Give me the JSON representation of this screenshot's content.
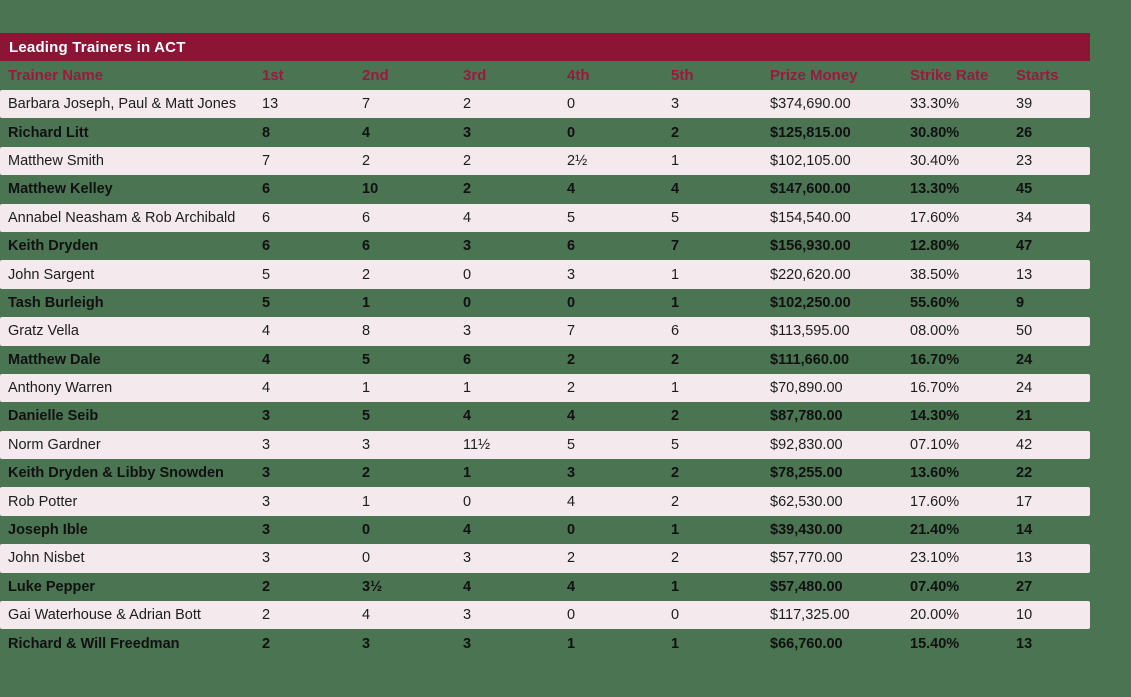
{
  "colors": {
    "page_background": "#4a7452",
    "title_bar": "#8c1535",
    "header_text": "#9a1a3f",
    "row_light": "#f4e9ed",
    "title_text": "#ffffff",
    "row_text": "#1d1d1d"
  },
  "table": {
    "title": "Leading Trainers in ACT"
  },
  "chart_data": {
    "type": "table",
    "title": "Leading Trainers in ACT",
    "columns": [
      "Trainer Name",
      "1st",
      "2nd",
      "3rd",
      "4th",
      "5th",
      "Prize Money",
      "Strike Rate",
      "Starts"
    ],
    "rows": [
      [
        "Barbara Joseph, Paul & Matt Jones",
        "13",
        "7",
        "2",
        "0",
        "3",
        "$374,690.00",
        "33.30%",
        "39"
      ],
      [
        "Richard Litt",
        "8",
        "4",
        "3",
        "0",
        "2",
        "$125,815.00",
        "30.80%",
        "26"
      ],
      [
        "Matthew Smith",
        "7",
        "2",
        "2",
        "2½",
        "1",
        "$102,105.00",
        "30.40%",
        "23"
      ],
      [
        "Matthew Kelley",
        "6",
        "10",
        "2",
        "4",
        "4",
        "$147,600.00",
        "13.30%",
        "45"
      ],
      [
        "Annabel Neasham & Rob Archibald",
        "6",
        "6",
        "4",
        "5",
        "5",
        "$154,540.00",
        "17.60%",
        "34"
      ],
      [
        "Keith Dryden",
        "6",
        "6",
        "3",
        "6",
        "7",
        "$156,930.00",
        "12.80%",
        "47"
      ],
      [
        "John Sargent",
        "5",
        "2",
        "0",
        "3",
        "1",
        "$220,620.00",
        "38.50%",
        "13"
      ],
      [
        "Tash Burleigh",
        "5",
        "1",
        "0",
        "0",
        "1",
        "$102,250.00",
        "55.60%",
        "9"
      ],
      [
        "Gratz Vella",
        "4",
        "8",
        "3",
        "7",
        "6",
        "$113,595.00",
        "08.00%",
        "50"
      ],
      [
        "Matthew Dale",
        "4",
        "5",
        "6",
        "2",
        "2",
        "$111,660.00",
        "16.70%",
        "24"
      ],
      [
        "Anthony Warren",
        "4",
        "1",
        "1",
        "2",
        "1",
        "$70,890.00",
        "16.70%",
        "24"
      ],
      [
        "Danielle Seib",
        "3",
        "5",
        "4",
        "4",
        "2",
        "$87,780.00",
        "14.30%",
        "21"
      ],
      [
        "Norm Gardner",
        "3",
        "3",
        "11½",
        "5",
        "5",
        "$92,830.00",
        "07.10%",
        "42"
      ],
      [
        "Keith Dryden & Libby Snowden",
        "3",
        "2",
        "1",
        "3",
        "2",
        "$78,255.00",
        "13.60%",
        "22"
      ],
      [
        "Rob Potter",
        "3",
        "1",
        "0",
        "4",
        "2",
        "$62,530.00",
        "17.60%",
        "17"
      ],
      [
        "Joseph Ible",
        "3",
        "0",
        "4",
        "0",
        "1",
        "$39,430.00",
        "21.40%",
        "14"
      ],
      [
        "John Nisbet",
        "3",
        "0",
        "3",
        "2",
        "2",
        "$57,770.00",
        "23.10%",
        "13"
      ],
      [
        "Luke Pepper",
        "2",
        "3½",
        "4",
        "4",
        "1",
        "$57,480.00",
        "07.40%",
        "27"
      ],
      [
        "Gai Waterhouse & Adrian Bott",
        "2",
        "4",
        "3",
        "0",
        "0",
        "$117,325.00",
        "20.00%",
        "10"
      ],
      [
        "Richard & Will Freedman",
        "2",
        "3",
        "3",
        "1",
        "1",
        "$66,760.00",
        "15.40%",
        "13"
      ]
    ]
  }
}
